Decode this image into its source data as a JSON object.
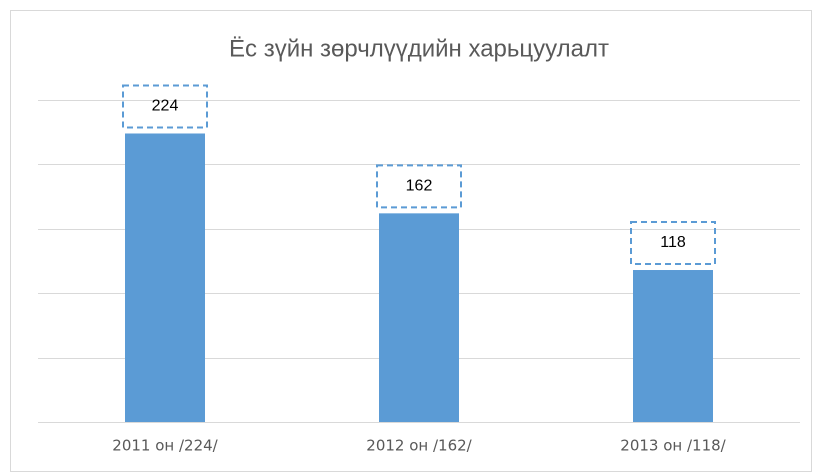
{
  "chart_data": {
    "type": "bar",
    "title": "Ёс зүйн зөрчлүүдийн харьцуулалт",
    "categories": [
      "2011 он /224/",
      "2012 он /162/",
      "2013 он /118/"
    ],
    "values": [
      224,
      162,
      118
    ],
    "color": "#5b9bd5",
    "ylim": [
      0,
      250
    ],
    "yticks": [
      0,
      50,
      100,
      150,
      200,
      250
    ],
    "grid": true
  }
}
